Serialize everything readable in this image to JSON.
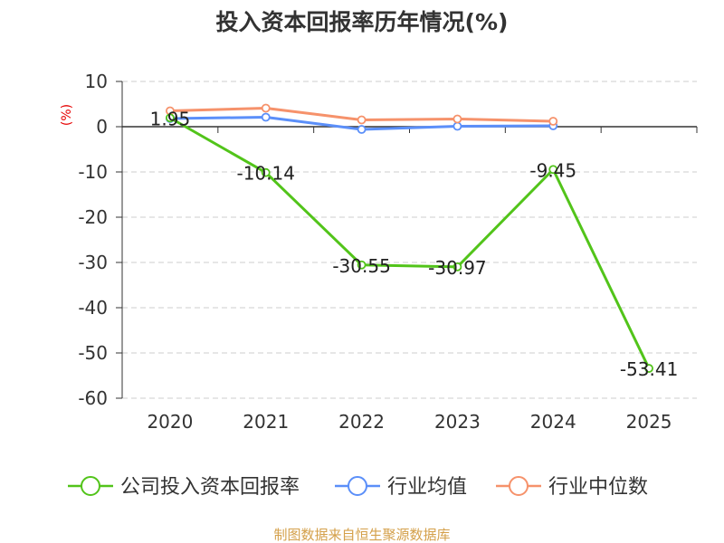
{
  "chart_data": {
    "type": "line",
    "title": "投入资本回报率历年情况(%)",
    "ylabel": "(%)",
    "xlabel": "",
    "categories": [
      "2020",
      "2021",
      "2022",
      "2023",
      "2024",
      "2025"
    ],
    "ylim": [
      -60,
      10
    ],
    "yticks": [
      10,
      0,
      -10,
      -20,
      -30,
      -40,
      -50,
      -60
    ],
    "grid": true,
    "legend_position": "bottom",
    "series": [
      {
        "name": "公司投入资本回报率",
        "color": "#52c41a",
        "values": [
          1.95,
          -10.14,
          -30.55,
          -30.97,
          -9.45,
          -53.41
        ],
        "labels": [
          "1.95",
          "-10.14",
          "-30.55",
          "-30.97",
          "-9.45",
          "-53.41"
        ]
      },
      {
        "name": "行业均值",
        "color": "#5b8ff9",
        "values": [
          1.8,
          2.1,
          -0.6,
          0.1,
          0.2,
          null
        ]
      },
      {
        "name": "行业中位数",
        "color": "#f6926b",
        "values": [
          3.5,
          4.1,
          1.5,
          1.7,
          1.2,
          null
        ]
      }
    ],
    "source": "制图数据来自恒生聚源数据库"
  }
}
